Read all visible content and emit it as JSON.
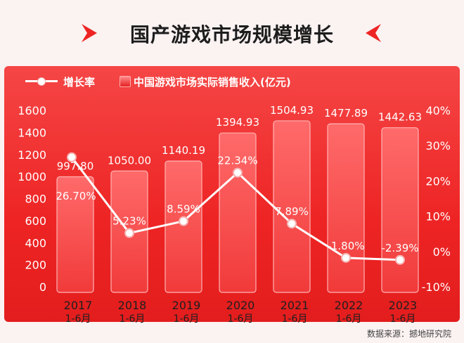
{
  "title": "国产游戏市场规模增长",
  "source": "数据来源：撼地研究院",
  "colors": {
    "accent": "#ee2424",
    "title": "#1d1d1d",
    "line": "#ffffff"
  },
  "chart_data": {
    "type": "bar",
    "categories": [
      "2017\n1-6月",
      "2018\n1-6月",
      "2019\n1-6月",
      "2020\n1-6月",
      "2021\n1-6月",
      "2022\n1-6月",
      "2023\n1-6月"
    ],
    "series": [
      {
        "name": "中国游戏市场实际销售收入(亿元)",
        "type": "bar",
        "axis": "left",
        "values": [
          997.8,
          1050.0,
          1140.19,
          1394.93,
          1504.93,
          1477.89,
          1442.63
        ],
        "labels": [
          "997.80",
          "1050.00",
          "1140.19",
          "1394.93",
          "1504.93",
          "1477.89",
          "1442.63"
        ]
      },
      {
        "name": "增长率",
        "type": "line",
        "axis": "right",
        "values": [
          26.7,
          5.23,
          8.59,
          22.34,
          7.89,
          -1.8,
          -2.39
        ],
        "labels": [
          "26.70%",
          "5.23%",
          "8.59%",
          "22.34%",
          "7.89%",
          "-1.80%",
          "-2.39%"
        ]
      }
    ],
    "ylim": [
      0,
      1600
    ],
    "yticks": [
      "0",
      "200",
      "400",
      "600",
      "800",
      "1000",
      "1200",
      "1400",
      "1600"
    ],
    "y2lim": [
      -10,
      40
    ],
    "y2ticks": [
      "-10%",
      "0%",
      "10%",
      "20%",
      "30%",
      "40%"
    ],
    "legend_position": "top-left",
    "grid": false
  }
}
